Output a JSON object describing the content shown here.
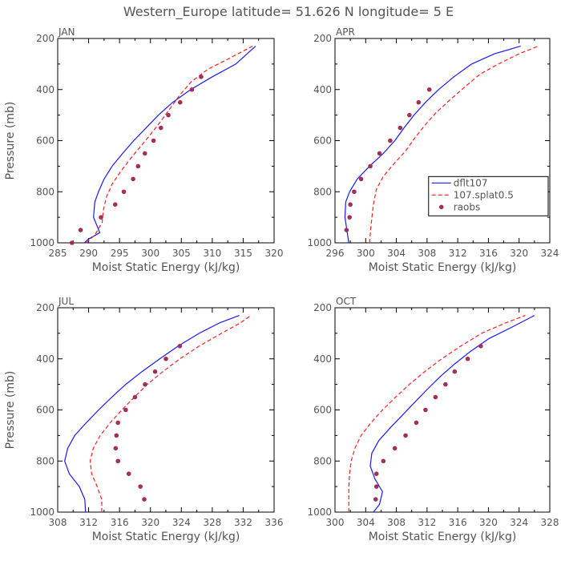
{
  "title": "Western_Europe  latitude= 51.626 N longitude= 5 E",
  "colors": {
    "dflt": "#1a1aff",
    "splat": "#ff2020",
    "raobs": "#a0305a",
    "frame": "#000000",
    "text": "#555555"
  },
  "legend": {
    "panel": "APR",
    "entries": [
      {
        "key": "dflt",
        "label": "dflt107"
      },
      {
        "key": "splat",
        "label": "107.splat0.5"
      },
      {
        "key": "raobs",
        "label": "raobs"
      }
    ]
  },
  "chart_data": [
    {
      "type": "line",
      "panel_label": "JAN",
      "xlabel": "Moist Static Energy (kJ/kg)",
      "ylabel": "Pressure (mb)",
      "xlim": [
        285,
        320
      ],
      "ylim": [
        1000,
        200
      ],
      "xticks": [
        285,
        290,
        295,
        300,
        305,
        310,
        315,
        320
      ],
      "yticks": [
        200,
        400,
        600,
        800,
        1000
      ],
      "series": [
        {
          "key": "dflt",
          "name": "dflt107",
          "style": "solid",
          "x": [
            289.3,
            290.0,
            291.8,
            290.8,
            291.0,
            291.6,
            292.5,
            293.8,
            295.5,
            297.3,
            299.3,
            301.3,
            303.6,
            306.5,
            310.0,
            313.8,
            317.0
          ],
          "y": [
            1000,
            985,
            960,
            900,
            840,
            800,
            750,
            700,
            650,
            600,
            550,
            500,
            450,
            400,
            350,
            300,
            230
          ]
        },
        {
          "key": "splat",
          "name": "107.splat0.5",
          "style": "dashed",
          "x": [
            289.6,
            291.0,
            292.2,
            292.4,
            292.9,
            293.8,
            295.2,
            296.8,
            298.5,
            300.2,
            301.8,
            303.3,
            304.8,
            306.6,
            309.3,
            312.6,
            316.5
          ],
          "y": [
            1000,
            970,
            920,
            870,
            820,
            770,
            720,
            670,
            620,
            570,
            520,
            470,
            420,
            370,
            320,
            280,
            230
          ]
        },
        {
          "key": "raobs",
          "name": "raobs",
          "style": "markers",
          "x": [
            287.3,
            288.7,
            292.0,
            294.3,
            295.7,
            297.2,
            298.0,
            299.1,
            300.5,
            301.7,
            302.9,
            304.8,
            306.7,
            308.2
          ],
          "y": [
            1000,
            950,
            900,
            850,
            800,
            750,
            700,
            650,
            600,
            550,
            500,
            450,
            400,
            350
          ]
        }
      ]
    },
    {
      "type": "line",
      "panel_label": "APR",
      "xlabel": "Moist Static Energy (kJ/kg)",
      "ylabel": "",
      "xlim": [
        296,
        324
      ],
      "ylim": [
        1000,
        200
      ],
      "xticks": [
        296,
        300,
        304,
        308,
        312,
        316,
        320,
        324
      ],
      "yticks": [
        200,
        400,
        600,
        800,
        1000
      ],
      "series": [
        {
          "key": "dflt",
          "name": "dflt107",
          "style": "solid",
          "x": [
            297.8,
            297.6,
            297.3,
            297.4,
            297.9,
            298.9,
            300.5,
            302.3,
            303.8,
            305.0,
            306.3,
            307.8,
            309.5,
            311.5,
            313.8,
            316.8,
            320.2
          ],
          "y": [
            1000,
            960,
            900,
            840,
            800,
            750,
            700,
            650,
            600,
            550,
            500,
            450,
            400,
            350,
            300,
            260,
            230
          ]
        },
        {
          "key": "splat",
          "name": "107.splat0.5",
          "style": "dashed",
          "x": [
            300.5,
            300.7,
            301.0,
            301.4,
            302.3,
            303.7,
            305.2,
            306.4,
            307.7,
            309.2,
            311.0,
            312.9,
            314.9,
            317.3,
            320.0,
            322.5
          ],
          "y": [
            1000,
            930,
            850,
            790,
            740,
            690,
            640,
            590,
            540,
            490,
            440,
            390,
            340,
            300,
            260,
            230
          ]
        },
        {
          "key": "raobs",
          "name": "raobs",
          "style": "markers",
          "x": [
            297.5,
            297.9,
            298.0,
            298.5,
            299.4,
            300.6,
            301.8,
            303.2,
            304.5,
            305.7,
            306.9,
            308.3
          ],
          "y": [
            950,
            900,
            850,
            800,
            750,
            700,
            650,
            600,
            550,
            500,
            450,
            400
          ]
        }
      ]
    },
    {
      "type": "line",
      "panel_label": "JUL",
      "xlabel": "Moist Static Energy (kJ/kg)",
      "ylabel": "Pressure (mb)",
      "xlim": [
        308,
        336
      ],
      "ylim": [
        1000,
        200
      ],
      "xticks": [
        308,
        312,
        316,
        320,
        324,
        328,
        332,
        336
      ],
      "yticks": [
        200,
        400,
        600,
        800,
        1000
      ],
      "series": [
        {
          "key": "dflt",
          "name": "dflt107",
          "style": "solid",
          "x": [
            311.6,
            311.5,
            310.8,
            309.5,
            308.9,
            309.3,
            310.2,
            311.7,
            313.3,
            315.0,
            316.8,
            318.9,
            321.2,
            323.6,
            326.3,
            328.9,
            331.5
          ],
          "y": [
            1000,
            950,
            900,
            850,
            800,
            750,
            700,
            650,
            600,
            550,
            500,
            450,
            400,
            350,
            300,
            260,
            230
          ]
        },
        {
          "key": "splat",
          "name": "107.splat0.5",
          "style": "dashed",
          "x": [
            313.7,
            313.7,
            313.1,
            312.4,
            312.2,
            312.6,
            313.5,
            314.8,
            316.3,
            317.9,
            319.6,
            321.6,
            323.8,
            326.3,
            329.2,
            331.6,
            333.0
          ],
          "y": [
            1000,
            950,
            900,
            850,
            800,
            750,
            700,
            650,
            600,
            550,
            500,
            450,
            400,
            350,
            300,
            260,
            230
          ]
        },
        {
          "key": "raobs",
          "name": "raobs",
          "style": "markers",
          "x": [
            319.2,
            318.7,
            317.2,
            315.8,
            315.5,
            315.6,
            315.8,
            316.8,
            318.0,
            319.3,
            320.6,
            322.0,
            323.8
          ],
          "y": [
            950,
            900,
            850,
            800,
            750,
            700,
            650,
            600,
            550,
            500,
            450,
            400,
            350
          ]
        }
      ]
    },
    {
      "type": "line",
      "panel_label": "OCT",
      "xlabel": "Moist Static Energy (kJ/kg)",
      "ylabel": "",
      "xlim": [
        300,
        328
      ],
      "ylim": [
        1000,
        200
      ],
      "xticks": [
        300,
        304,
        308,
        312,
        316,
        320,
        324,
        328
      ],
      "yticks": [
        200,
        400,
        600,
        800,
        1000
      ],
      "series": [
        {
          "key": "dflt",
          "name": "dflt107",
          "style": "solid",
          "x": [
            305.0,
            305.8,
            306.2,
            305.2,
            304.6,
            304.8,
            305.7,
            307.2,
            308.8,
            310.4,
            312.0,
            313.7,
            315.6,
            317.7,
            320.1,
            322.8,
            326.0
          ],
          "y": [
            1000,
            970,
            920,
            870,
            820,
            770,
            720,
            670,
            620,
            570,
            520,
            470,
            420,
            370,
            320,
            280,
            230
          ]
        },
        {
          "key": "splat",
          "name": "107.splat0.5",
          "style": "dashed",
          "x": [
            301.8,
            301.8,
            301.9,
            302.1,
            302.6,
            303.4,
            304.7,
            306.2,
            307.9,
            309.7,
            311.7,
            313.9,
            316.4,
            319.1,
            322.2,
            324.8
          ],
          "y": [
            1000,
            900,
            850,
            800,
            750,
            700,
            650,
            600,
            550,
            500,
            450,
            400,
            350,
            300,
            260,
            230
          ]
        },
        {
          "key": "raobs",
          "name": "raobs",
          "style": "markers",
          "x": [
            305.3,
            305.4,
            305.4,
            306.3,
            307.8,
            309.2,
            310.6,
            311.8,
            313.1,
            314.4,
            315.6,
            317.3,
            319.0
          ],
          "y": [
            950,
            900,
            850,
            800,
            750,
            700,
            650,
            600,
            550,
            500,
            450,
            400,
            350
          ]
        }
      ]
    }
  ]
}
